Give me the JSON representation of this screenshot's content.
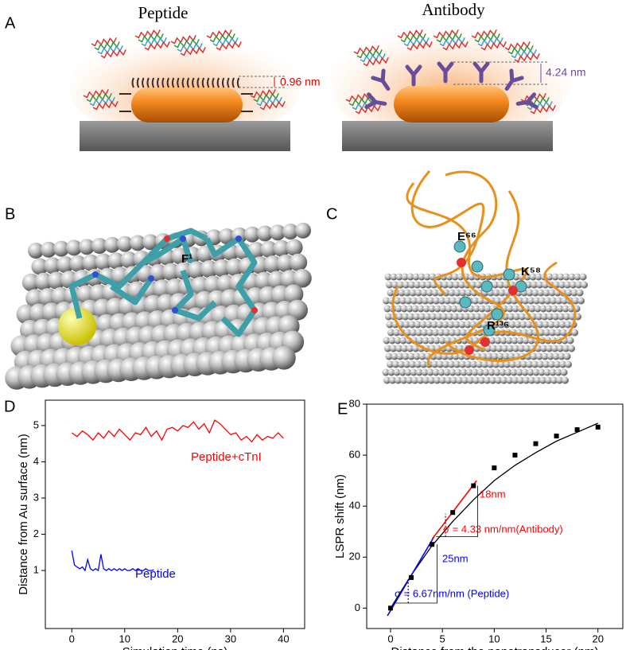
{
  "panels": {
    "A": {
      "label": "A",
      "peptide_title": "Peptide",
      "antibody_title": "Antibody",
      "peptide_distance": "0.96 nm",
      "antibody_distance": "4.24 nm"
    },
    "B": {
      "label": "B",
      "residue": "F¹"
    },
    "C": {
      "label": "C",
      "residues": [
        "E⁶⁶",
        "K⁵⁸",
        "R¹³⁶"
      ]
    }
  },
  "chart_data": [
    {
      "type": "line",
      "label": "D",
      "xlabel": "Simulation time (ns)",
      "ylabel": "Distance from Au surface (nm)",
      "xlim": [
        -5,
        44
      ],
      "ylim": [
        -0.6,
        5.7
      ],
      "xticks": [
        0,
        10,
        20,
        30,
        40
      ],
      "yticks": [
        1,
        2,
        3,
        4,
        5
      ],
      "series": [
        {
          "name": "Peptide+cTnI",
          "color": "#ff0000",
          "x": [
            0,
            1,
            2,
            3,
            4,
            5,
            6,
            7,
            8,
            9,
            10,
            11,
            12,
            13,
            14,
            15,
            16,
            17,
            18,
            19,
            20,
            21,
            22,
            23,
            24,
            25,
            26,
            27,
            28,
            29,
            30,
            31,
            32,
            33,
            34,
            35,
            36,
            37,
            38,
            39,
            40
          ],
          "values": [
            4.8,
            4.7,
            4.85,
            4.75,
            4.6,
            4.8,
            4.65,
            4.85,
            4.7,
            4.9,
            4.75,
            4.6,
            4.8,
            4.75,
            4.95,
            4.7,
            4.85,
            4.6,
            4.9,
            4.95,
            4.85,
            5.0,
            4.95,
            5.1,
            4.9,
            5.05,
            4.8,
            5.15,
            5.05,
            4.9,
            4.75,
            4.8,
            4.6,
            4.7,
            4.55,
            4.75,
            4.6,
            4.7,
            4.65,
            4.8,
            4.65
          ]
        },
        {
          "name": "Peptide",
          "color": "#0000ff",
          "x": [
            0,
            0.5,
            1,
            1.5,
            2,
            2.5,
            3,
            3.5,
            4,
            4.5,
            5,
            5.5,
            6,
            6.5,
            7,
            7.5,
            8,
            8.5,
            9,
            9.5,
            10,
            10.5,
            11,
            11.5,
            12,
            12.5,
            13,
            13.5,
            14,
            14.5,
            15,
            15.5
          ],
          "values": [
            1.55,
            1.15,
            1.1,
            1.05,
            1.1,
            1.0,
            1.3,
            1.05,
            1.0,
            1.05,
            1.0,
            1.45,
            1.05,
            1.0,
            1.05,
            1.0,
            1.05,
            1.0,
            1.05,
            1.0,
            1.05,
            1.0,
            1.0,
            1.05,
            1.0,
            1.05,
            1.0,
            1.0,
            1.05,
            1.0,
            1.0,
            1.02
          ]
        }
      ]
    },
    {
      "type": "scatter",
      "label": "E",
      "xlabel": "Distance from the  nanotransducer (nm)",
      "ylabel": "LSPR shift (nm)",
      "xlim": [
        -2.3,
        22.4
      ],
      "ylim": [
        -8,
        80
      ],
      "xticks": [
        0,
        5,
        10,
        15,
        20
      ],
      "yticks": [
        0,
        20,
        40,
        60,
        80
      ],
      "series": [
        {
          "color": "#000000",
          "x": [
            0,
            2,
            4,
            6,
            8,
            10,
            12,
            14,
            16,
            18,
            20
          ],
          "values": [
            0,
            12,
            25,
            37.5,
            48,
            55,
            60,
            64.5,
            67.5,
            70,
            71
          ]
        }
      ],
      "lines": [
        {
          "color": "#000000",
          "x": [
            0,
            2,
            4,
            6,
            8,
            10,
            12,
            14,
            16,
            18,
            20
          ],
          "values": [
            0,
            13,
            24.5,
            34,
            42.5,
            50,
            56,
            61,
            65.5,
            69,
            72.5
          ]
        },
        {
          "color": "#0000ff",
          "x": [
            -0.3,
            4.2
          ],
          "values": [
            -3,
            28
          ]
        },
        {
          "color": "#ff0000",
          "x": [
            4,
            8.3
          ],
          "values": [
            27,
            50
          ]
        },
        {
          "color": "#000000",
          "x": [
            0.5,
            4.5,
            4.5
          ],
          "values": [
            2,
            2,
            25
          ]
        },
        {
          "color": "#000000",
          "x": [
            4.4,
            8.4,
            8.4
          ],
          "values": [
            28,
            28,
            48
          ]
        }
      ],
      "annotations": [
        {
          "text": "18nm",
          "color": "#ff0000"
        },
        {
          "text": "σ = 4.33 nm/nm(Antibody)",
          "color": "#ff0000"
        },
        {
          "text": "25nm",
          "color": "#0000ff"
        },
        {
          "text": "σ = 6.67nm/nm (Peptide)",
          "color": "#0000ff"
        }
      ]
    }
  ]
}
